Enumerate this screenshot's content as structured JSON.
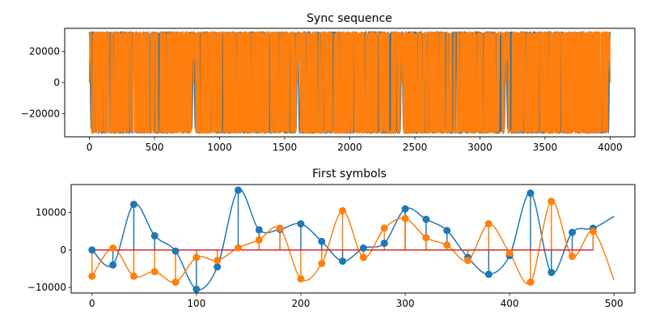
{
  "chart_data": [
    {
      "type": "line",
      "title": "Sync sequence",
      "xlabel": "",
      "ylabel": "",
      "xlim": [
        -190,
        4190
      ],
      "ylim": [
        -35000,
        35000
      ],
      "x_ticks": [
        0,
        500,
        1000,
        1500,
        2000,
        2500,
        3000,
        3500,
        4000
      ],
      "y_ticks": [
        -20000,
        0,
        20000
      ],
      "x_tick_labels": [
        "0",
        "500",
        "1000",
        "1500",
        "2000",
        "2500",
        "3000",
        "3500",
        "4000"
      ],
      "y_tick_labels": [
        "−20000",
        "0",
        "20000"
      ],
      "amplitude": 32767,
      "n_samples": 4000,
      "segments": [
        [
          0,
          800
        ],
        [
          800,
          1600
        ],
        [
          1600,
          2400
        ],
        [
          2400,
          3200
        ],
        [
          3200,
          4000
        ]
      ],
      "grid": false,
      "series": [
        {
          "color": "#1f77b4"
        },
        {
          "color": "#ff7f0e"
        }
      ]
    },
    {
      "type": "stem",
      "title": "First symbols",
      "xlabel": "",
      "ylabel": "",
      "xlim": [
        -20,
        520
      ],
      "ylim": [
        -11500,
        17500
      ],
      "x_ticks": [
        0,
        100,
        200,
        300,
        400,
        500
      ],
      "y_ticks": [
        -10000,
        0,
        10000
      ],
      "x_tick_labels": [
        "0",
        "100",
        "200",
        "300",
        "400",
        "500"
      ],
      "y_tick_labels": [
        "−10000",
        "0",
        "10000"
      ],
      "x": [
        0,
        20,
        40,
        60,
        80,
        100,
        120,
        140,
        160,
        180,
        200,
        220,
        240,
        260,
        280,
        300,
        320,
        340,
        360,
        380,
        400,
        420,
        440,
        460,
        480
      ],
      "baseline": {
        "x": [
          0,
          480
        ],
        "y": 0,
        "color": "#d62728"
      },
      "grid": false,
      "series": [
        {
          "color": "#1f77b4",
          "values": [
            0,
            -4000,
            12200,
            3800,
            -300,
            -10500,
            -4500,
            16000,
            5400,
            5500,
            7000,
            2300,
            -3000,
            500,
            1800,
            11000,
            8200,
            5200,
            -2000,
            -6500,
            -1500,
            15200,
            -6000,
            4700,
            5800
          ],
          "curve_end": [
            500,
            9000
          ]
        },
        {
          "color": "#ff7f0e",
          "values": [
            -7000,
            500,
            -7000,
            -5800,
            -8600,
            -2000,
            -2800,
            600,
            2700,
            5800,
            -7700,
            -3600,
            10500,
            -2000,
            5800,
            8400,
            3300,
            1300,
            -2800,
            7000,
            -800,
            -8600,
            13000,
            -1700,
            5000
          ],
          "curve_end": [
            500,
            -8000
          ]
        }
      ]
    }
  ]
}
